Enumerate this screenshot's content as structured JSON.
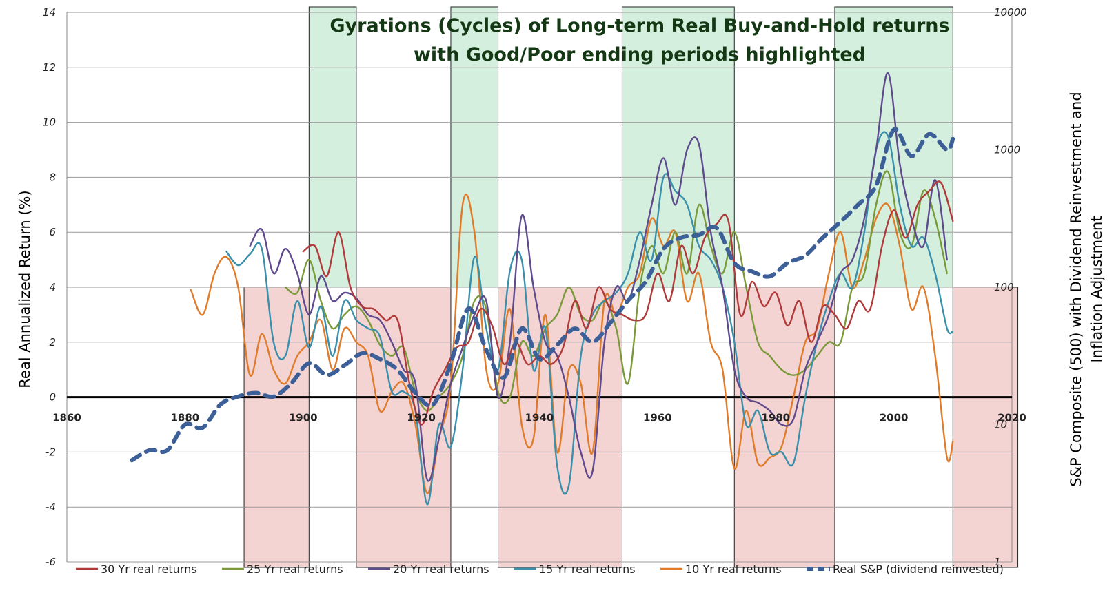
{
  "chart_data": {
    "type": "line",
    "title": "Gyrations (Cycles) of Long-term Real Buy-and-Hold returns",
    "subtitle": "with Good/Poor ending periods highlighted",
    "ylabel": "Real Annualized Return (%)",
    "y2label_line1": "S&P Composite (500) with Dividend Reinvestment and",
    "y2label_line2": "Inflation Adjustment",
    "xlim": [
      1860,
      2020
    ],
    "ylim": [
      -6,
      14
    ],
    "y2lim": [
      1,
      10000
    ],
    "y2scale": "log",
    "x_ticks": [
      "1860",
      "1880",
      "1900",
      "1920",
      "1940",
      "1960",
      "1980",
      "2000",
      "2020"
    ],
    "y_ticks": [
      "14",
      "12",
      "10",
      "8",
      "6",
      "4",
      "2",
      "0",
      "-2",
      "-4",
      "-6"
    ],
    "y2_ticks": [
      "10000",
      "1000",
      "100",
      "10",
      "1"
    ],
    "good_periods": [
      [
        1901,
        1909
      ],
      [
        1925,
        1933
      ],
      [
        1954,
        1973
      ],
      [
        1990,
        2010
      ]
    ],
    "poor_periods": [
      [
        1890,
        1901
      ],
      [
        1909,
        1925
      ],
      [
        1933,
        1954
      ],
      [
        1973,
        1990
      ],
      [
        2010,
        2021
      ]
    ],
    "series": [
      {
        "name": "30 Yr real returns",
        "color": "#b03a3a",
        "x": [
          1900,
          1902,
          1904,
          1906,
          1908,
          1910,
          1912,
          1914,
          1916,
          1918,
          1920,
          1922,
          1924,
          1926,
          1928,
          1930,
          1932,
          1934,
          1936,
          1938,
          1940,
          1942,
          1944,
          1946,
          1948,
          1950,
          1952,
          1954,
          1956,
          1958,
          1960,
          1962,
          1964,
          1966,
          1968,
          1970,
          1972,
          1974,
          1976,
          1978,
          1980,
          1982,
          1984,
          1986,
          1988,
          1990,
          1992,
          1994,
          1996,
          1998,
          2000,
          2002,
          2004,
          2006,
          2008,
          2010
        ],
        "values": [
          5.3,
          5.5,
          4.4,
          6.0,
          4.0,
          3.3,
          3.2,
          2.8,
          2.8,
          0.5,
          -1.0,
          0.2,
          1.0,
          1.8,
          2.0,
          3.2,
          2.6,
          1.2,
          2.0,
          1.2,
          1.5,
          1.2,
          1.8,
          3.5,
          2.5,
          4.0,
          3.2,
          3.0,
          2.8,
          3.0,
          4.5,
          3.5,
          5.5,
          4.5,
          5.8,
          6.3,
          6.4,
          3.0,
          4.2,
          3.3,
          3.8,
          2.6,
          3.5,
          2.0,
          3.3,
          3.0,
          2.5,
          3.5,
          3.2,
          5.5,
          6.8,
          5.8,
          7.0,
          7.5,
          7.8,
          6.4
        ]
      },
      {
        "name": "25 Yr real returns",
        "color": "#7a9a3a",
        "x": [
          1897,
          1899,
          1901,
          1903,
          1905,
          1907,
          1909,
          1911,
          1913,
          1915,
          1917,
          1919,
          1921,
          1923,
          1925,
          1927,
          1929,
          1931,
          1933,
          1935,
          1937,
          1939,
          1941,
          1943,
          1945,
          1947,
          1949,
          1951,
          1953,
          1955,
          1957,
          1959,
          1961,
          1963,
          1965,
          1967,
          1969,
          1971,
          1973,
          1975,
          1977,
          1979,
          1981,
          1983,
          1985,
          1987,
          1989,
          1991,
          1993,
          1995,
          1997,
          1999,
          2001,
          2003,
          2005,
          2007,
          2009
        ],
        "values": [
          4.0,
          3.8,
          5.0,
          3.5,
          2.5,
          3.0,
          3.3,
          2.8,
          1.9,
          1.5,
          1.8,
          0.2,
          -0.5,
          0.0,
          0.5,
          1.5,
          3.5,
          3.2,
          0.2,
          0.0,
          2.0,
          1.5,
          2.5,
          3.0,
          4.0,
          3.0,
          2.8,
          3.5,
          2.5,
          0.5,
          4.0,
          5.5,
          4.5,
          6.0,
          4.5,
          7.0,
          5.5,
          4.5,
          6.0,
          4.0,
          2.0,
          1.5,
          1.0,
          0.8,
          1.0,
          1.5,
          2.0,
          2.0,
          4.0,
          4.5,
          7.0,
          8.2,
          6.0,
          5.5,
          7.5,
          6.5,
          4.5
        ]
      },
      {
        "name": "20 Yr real returns",
        "color": "#5e4a8c",
        "x": [
          1891,
          1893,
          1895,
          1897,
          1899,
          1901,
          1903,
          1905,
          1907,
          1909,
          1911,
          1913,
          1915,
          1917,
          1919,
          1921,
          1923,
          1925,
          1927,
          1929,
          1931,
          1933,
          1935,
          1937,
          1939,
          1941,
          1943,
          1945,
          1947,
          1949,
          1951,
          1953,
          1955,
          1957,
          1959,
          1961,
          1963,
          1965,
          1967,
          1969,
          1971,
          1973,
          1975,
          1977,
          1979,
          1981,
          1983,
          1985,
          1987,
          1989,
          1991,
          1993,
          1995,
          1997,
          1999,
          2001,
          2003,
          2005,
          2007,
          2009
        ],
        "values": [
          5.5,
          6.1,
          4.5,
          5.4,
          4.5,
          3.0,
          4.4,
          3.5,
          3.8,
          3.6,
          3.0,
          2.8,
          2.0,
          1.0,
          0.5,
          -3.0,
          -1.5,
          0.5,
          1.8,
          3.0,
          3.5,
          0.0,
          2.0,
          6.6,
          4.0,
          2.0,
          1.5,
          0.0,
          -2.0,
          -2.7,
          2.0,
          4.0,
          3.5,
          5.0,
          7.0,
          8.7,
          7.0,
          9.0,
          9.2,
          6.0,
          4.0,
          1.0,
          0.0,
          -0.2,
          -0.5,
          -1.0,
          -0.8,
          1.0,
          2.0,
          3.0,
          4.5,
          5.0,
          6.5,
          9.0,
          11.8,
          8.5,
          6.5,
          5.5,
          7.9,
          5.0
        ]
      },
      {
        "name": "15 Yr real returns",
        "color": "#3a8fab",
        "x": [
          1887,
          1889,
          1891,
          1893,
          1895,
          1897,
          1899,
          1901,
          1903,
          1905,
          1907,
          1909,
          1911,
          1913,
          1915,
          1917,
          1919,
          1921,
          1923,
          1925,
          1927,
          1929,
          1931,
          1933,
          1935,
          1937,
          1939,
          1941,
          1943,
          1945,
          1947,
          1949,
          1951,
          1953,
          1955,
          1957,
          1959,
          1961,
          1963,
          1965,
          1967,
          1969,
          1971,
          1973,
          1975,
          1977,
          1979,
          1981,
          1983,
          1985,
          1987,
          1989,
          1991,
          1993,
          1995,
          1997,
          1999,
          2001,
          2003,
          2005,
          2007,
          2009,
          2010
        ],
        "values": [
          5.3,
          4.8,
          5.2,
          5.4,
          2.0,
          1.5,
          3.5,
          1.8,
          3.3,
          1.5,
          3.5,
          2.8,
          2.5,
          2.2,
          0.2,
          0.2,
          -0.5,
          -3.9,
          -1.0,
          -1.8,
          1.0,
          5.1,
          2.5,
          1.0,
          4.6,
          5.0,
          1.0,
          2.5,
          -2.5,
          -3.2,
          1.5,
          3.0,
          3.5,
          3.8,
          4.5,
          6.0,
          5.0,
          8.0,
          7.5,
          7.0,
          5.5,
          5.0,
          4.0,
          2.0,
          -1.0,
          -0.5,
          -2.0,
          -2.0,
          -2.4,
          0.0,
          2.0,
          3.5,
          4.5,
          4.0,
          6.0,
          9.0,
          9.5,
          7.0,
          5.5,
          5.8,
          4.5,
          2.5,
          2.4
        ]
      },
      {
        "name": "10 Yr real returns",
        "color": "#e07b2a",
        "x": [
          1881,
          1883,
          1885,
          1887,
          1889,
          1891,
          1893,
          1895,
          1897,
          1899,
          1901,
          1903,
          1905,
          1907,
          1909,
          1911,
          1913,
          1915,
          1917,
          1919,
          1921,
          1923,
          1925,
          1927,
          1929,
          1931,
          1933,
          1935,
          1937,
          1939,
          1941,
          1943,
          1945,
          1947,
          1949,
          1951,
          1953,
          1955,
          1957,
          1959,
          1961,
          1963,
          1965,
          1967,
          1969,
          1971,
          1973,
          1975,
          1977,
          1979,
          1981,
          1983,
          1985,
          1987,
          1989,
          1991,
          1993,
          1995,
          1997,
          1999,
          2001,
          2003,
          2005,
          2007,
          2009,
          2010
        ],
        "values": [
          3.9,
          3.0,
          4.5,
          5.1,
          4.0,
          0.8,
          2.3,
          1.0,
          0.5,
          1.5,
          2.0,
          2.8,
          1.0,
          2.5,
          2.0,
          1.5,
          -0.5,
          0.2,
          0.5,
          -1.0,
          -3.5,
          -1.5,
          0.5,
          7.0,
          6.0,
          1.0,
          0.5,
          3.2,
          -1.0,
          -1.5,
          3.0,
          -2.0,
          1.0,
          0.5,
          -2.0,
          3.5,
          3.0,
          4.0,
          4.5,
          6.5,
          5.5,
          6.0,
          3.5,
          4.5,
          2.0,
          1.0,
          -2.6,
          -0.5,
          -2.4,
          -2.2,
          -1.8,
          0.0,
          2.0,
          2.5,
          4.5,
          6.0,
          4.0,
          5.0,
          6.5,
          7.0,
          5.5,
          3.2,
          4.0,
          1.5,
          -2.2,
          -1.6
        ]
      },
      {
        "name": "Real S&P (dividend reinvested)",
        "color": "#3b5f96",
        "dashed": true,
        "x": [
          1871,
          1874,
          1877,
          1880,
          1883,
          1886,
          1889,
          1892,
          1895,
          1898,
          1901,
          1904,
          1907,
          1910,
          1913,
          1916,
          1919,
          1922,
          1925,
          1928,
          1931,
          1934,
          1937,
          1940,
          1943,
          1946,
          1949,
          1952,
          1955,
          1958,
          1961,
          1964,
          1967,
          1970,
          1973,
          1976,
          1979,
          1982,
          1985,
          1988,
          1991,
          1994,
          1997,
          2000,
          2003,
          2006,
          2009,
          2010
        ],
        "y2": [
          5.5,
          6.5,
          6.5,
          10,
          9.5,
          14,
          16,
          17,
          16,
          20,
          28,
          23,
          27,
          33,
          30,
          25,
          17,
          14,
          28,
          70,
          35,
          22,
          50,
          30,
          38,
          50,
          40,
          55,
          80,
          110,
          190,
          230,
          240,
          270,
          150,
          130,
          120,
          150,
          170,
          230,
          300,
          400,
          550,
          1400,
          900,
          1300,
          1000,
          1200
        ]
      }
    ],
    "legend": [
      "30 Yr real returns",
      "25 Yr real returns",
      "20 Yr real returns",
      "15 Yr real returns",
      "10 Yr real returns",
      "Real S&P (dividend reinvested)"
    ],
    "legend_position": "bottom"
  }
}
